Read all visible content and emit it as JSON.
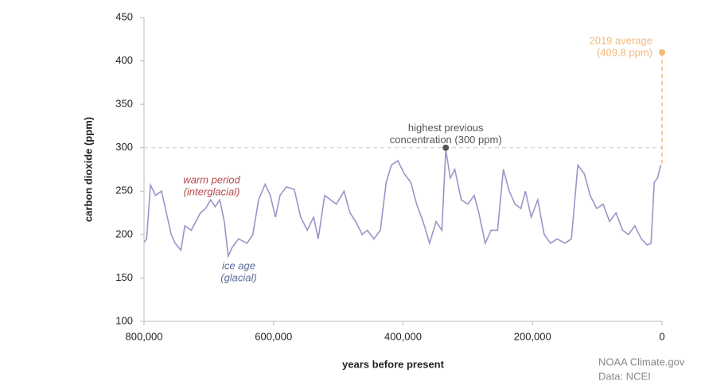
{
  "chart_data": {
    "type": "line",
    "ylabel": "carbon dioxide (ppm)",
    "xlabel": "years before present",
    "color": "#9a95c8",
    "x": [
      800000,
      796000,
      790000,
      782000,
      773000,
      764000,
      758000,
      752000,
      743000,
      737000,
      727000,
      720000,
      713000,
      705000,
      697000,
      690000,
      683000,
      676000,
      670000,
      664000,
      654000,
      641000,
      632000,
      623000,
      613000,
      605000,
      597000,
      590000,
      580000,
      568000,
      558000,
      548000,
      538000,
      531000,
      521000,
      512000,
      503000,
      491000,
      482000,
      473000,
      463000,
      455000,
      445000,
      435000,
      426000,
      418000,
      408000,
      398000,
      388000,
      379000,
      369000,
      359000,
      349000,
      340000,
      334000,
      327000,
      320000,
      310000,
      300000,
      290000,
      283000,
      273000,
      264000,
      254000,
      245000,
      236000,
      227000,
      218000,
      211000,
      202000,
      192000,
      182000,
      172000,
      162000,
      150000,
      140000,
      130000,
      120000,
      111000,
      101000,
      91000,
      81000,
      71000,
      61000,
      52000,
      42000,
      32000,
      23000,
      17000,
      12000,
      7000,
      2000
    ],
    "values": [
      191,
      195,
      257,
      245,
      250,
      220,
      200,
      190,
      182,
      210,
      205,
      215,
      225,
      230,
      240,
      232,
      240,
      215,
      175,
      185,
      195,
      190,
      200,
      240,
      258,
      245,
      220,
      245,
      255,
      252,
      220,
      205,
      220,
      195,
      245,
      240,
      235,
      250,
      225,
      215,
      200,
      205,
      195,
      205,
      260,
      280,
      285,
      270,
      260,
      235,
      215,
      190,
      215,
      205,
      298,
      265,
      275,
      240,
      235,
      245,
      225,
      190,
      205,
      205,
      275,
      250,
      235,
      230,
      250,
      220,
      240,
      200,
      190,
      195,
      190,
      195,
      280,
      270,
      245,
      230,
      235,
      215,
      225,
      205,
      200,
      210,
      195,
      188,
      190,
      260,
      265,
      280
    ],
    "xlim": [
      800000,
      0
    ],
    "xticks": [
      {
        "value": 800000,
        "label": "800,000"
      },
      {
        "value": 600000,
        "label": "600,000"
      },
      {
        "value": 400000,
        "label": "400,000"
      },
      {
        "value": 200000,
        "label": "200,000"
      },
      0
    ],
    "ylim": [
      100,
      450
    ],
    "yticks": [
      100,
      150,
      200,
      250,
      300,
      350,
      400,
      450
    ],
    "highlights": [
      {
        "x": 334000,
        "y": 300,
        "color": "#555555",
        "lines": [
          "highest previous",
          "concentration (300 ppm)"
        ]
      },
      {
        "x": 0,
        "y": 409.8,
        "color": "#f5b97a",
        "lines": [
          "2019 average",
          "(409.8 ppm)"
        ]
      }
    ],
    "annotations": [
      {
        "color": "#b8474a",
        "lines": [
          "warm period",
          "(interglacial)"
        ]
      },
      {
        "color": "#5b6b99",
        "lines": [
          "ice age",
          "(glacial)"
        ]
      }
    ],
    "source": [
      "NOAA Climate.gov",
      "Data: NCEI"
    ]
  }
}
